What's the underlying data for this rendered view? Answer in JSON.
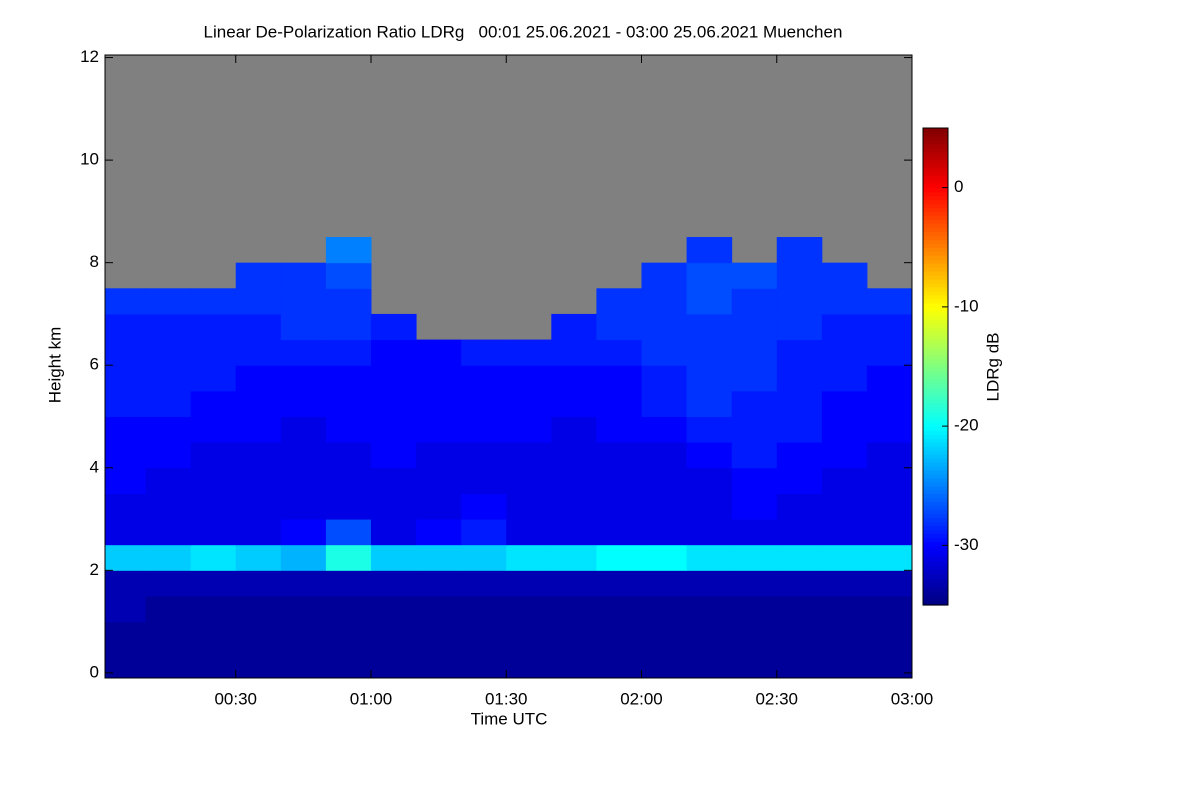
{
  "chart_data": {
    "type": "heatmap",
    "title": "Linear De-Polarization Ratio LDRg   00:01 25.06.2021 - 03:00 25.06.2021 Muenchen",
    "xlabel": "Time UTC",
    "ylabel": "Height km",
    "colorbar_label": "LDRg dB",
    "missing_color": "#808080",
    "colormap": "jet",
    "xlim": [
      1,
      180
    ],
    "ylim": [
      -0.1,
      12.05
    ],
    "zlim": [
      -35,
      5
    ],
    "xticks": [
      {
        "value": 30,
        "label": "00:30"
      },
      {
        "value": 60,
        "label": "01:00"
      },
      {
        "value": 90,
        "label": "01:30"
      },
      {
        "value": 120,
        "label": "02:00"
      },
      {
        "value": 150,
        "label": "02:30"
      },
      {
        "value": 180,
        "label": "03:00"
      }
    ],
    "yticks": [
      0,
      2,
      4,
      6,
      8,
      10,
      12
    ],
    "zticks": [
      -30,
      -20,
      -10,
      0
    ],
    "x_bins": [
      1,
      10,
      20,
      30,
      40,
      50,
      60,
      70,
      80,
      90,
      100,
      110,
      120,
      130,
      140,
      150,
      160,
      170,
      180
    ],
    "y_bins": [
      0,
      0.5,
      1,
      1.5,
      2,
      2.5,
      3,
      3.5,
      4,
      4.5,
      5,
      5.5,
      6,
      6.5,
      7,
      7.5,
      8,
      8.5,
      9,
      9.5,
      10,
      10.5,
      11,
      11.5,
      12
    ],
    "z": [
      [
        -34,
        -34,
        -34,
        -34,
        -34,
        -34,
        -34,
        -34,
        -34,
        -34,
        -34,
        -34,
        -34,
        -34,
        -34,
        -34,
        -34,
        -34
      ],
      [
        -34,
        -34,
        -34,
        -34,
        -34,
        -34,
        -34,
        -34,
        -34,
        -34,
        -34,
        -34,
        -34,
        -34,
        -34,
        -34,
        -34,
        -34
      ],
      [
        -33,
        -34,
        -34,
        -34,
        -34,
        -34,
        -34,
        -34,
        -34,
        -34,
        -34,
        -34,
        -34,
        -34,
        -34,
        -34,
        -34,
        -34
      ],
      [
        -33,
        -33,
        -33,
        -33,
        -33,
        -33,
        -33,
        -33,
        -33,
        -33,
        -33,
        -33,
        -33,
        -33,
        -33,
        -33,
        -33,
        -33
      ],
      [
        -22,
        -22,
        -21,
        -22,
        -23,
        -19,
        -22,
        -22,
        -22,
        -21,
        -21,
        -20,
        -20,
        -21,
        -21,
        -21,
        -21,
        -21
      ],
      [
        -31,
        -31,
        -31,
        -31,
        -30,
        -27,
        -31,
        -30,
        -29,
        -31,
        -31,
        -31,
        -31,
        -31,
        -31,
        -31,
        -31,
        -31
      ],
      [
        -31,
        -31,
        -31,
        -31,
        -31,
        -31,
        -31,
        -31,
        -30,
        -31,
        -31,
        -31,
        -31,
        -31,
        -30,
        -31,
        -31,
        -31
      ],
      [
        -30,
        -31,
        -31,
        -31,
        -31,
        -31,
        -31,
        -31,
        -31,
        -31,
        -31,
        -31,
        -31,
        -31,
        -30,
        -30,
        -31,
        -31
      ],
      [
        -30,
        -30,
        -31,
        -31,
        -31,
        -31,
        -30,
        -31,
        -31,
        -31,
        -31,
        -31,
        -31,
        -30,
        -29,
        -30,
        -30,
        -31
      ],
      [
        -30,
        -30,
        -30,
        -30,
        -31,
        -30,
        -30,
        -30,
        -30,
        -30,
        -31,
        -30,
        -30,
        -29,
        -29,
        -29,
        -30,
        -30
      ],
      [
        -29,
        -29,
        -30,
        -30,
        -30,
        -30,
        -30,
        -30,
        -30,
        -30,
        -30,
        -30,
        -29,
        -28,
        -29,
        -29,
        -30,
        -30
      ],
      [
        -29,
        -29,
        -29,
        -30,
        -30,
        -30,
        -30,
        -30,
        -30,
        -30,
        -30,
        -30,
        -29,
        -28,
        -28,
        -29,
        -29,
        -30
      ],
      [
        -29,
        -29,
        -29,
        -29,
        -29,
        -29,
        -30,
        -30,
        -29,
        -29,
        -29,
        -29,
        -28,
        -28,
        -28,
        -29,
        -29,
        -29
      ],
      [
        -29,
        -29,
        -29,
        -29,
        -28,
        -28,
        -29,
        null,
        null,
        null,
        -29,
        -28,
        -28,
        -28,
        -28,
        -28,
        -29,
        -29
      ],
      [
        -28,
        -28,
        -28,
        -28,
        -28,
        -28,
        null,
        null,
        null,
        null,
        null,
        -28,
        -28,
        -27,
        -28,
        -28,
        -28,
        -28
      ],
      [
        null,
        null,
        null,
        -28,
        -28,
        -27,
        null,
        null,
        null,
        null,
        null,
        null,
        -28,
        -27,
        -27,
        -28,
        -28,
        null
      ],
      [
        null,
        null,
        null,
        null,
        null,
        -25,
        null,
        null,
        null,
        null,
        null,
        null,
        null,
        -28,
        null,
        -28,
        null,
        null
      ],
      [
        null,
        null,
        null,
        null,
        null,
        null,
        null,
        null,
        null,
        null,
        null,
        null,
        null,
        null,
        null,
        null,
        null,
        null
      ],
      [
        null,
        null,
        null,
        null,
        null,
        null,
        null,
        null,
        null,
        null,
        null,
        null,
        null,
        null,
        null,
        null,
        null,
        null
      ],
      [
        null,
        null,
        null,
        null,
        null,
        null,
        null,
        null,
        null,
        null,
        null,
        null,
        null,
        null,
        null,
        null,
        null,
        null
      ],
      [
        null,
        null,
        null,
        null,
        null,
        null,
        null,
        null,
        null,
        null,
        null,
        null,
        null,
        null,
        null,
        null,
        null,
        null
      ],
      [
        null,
        null,
        null,
        null,
        null,
        null,
        null,
        null,
        null,
        null,
        null,
        null,
        null,
        null,
        null,
        null,
        null,
        null
      ],
      [
        null,
        null,
        null,
        null,
        null,
        null,
        null,
        null,
        null,
        null,
        null,
        null,
        null,
        null,
        null,
        null,
        null,
        null
      ],
      [
        null,
        null,
        null,
        null,
        null,
        null,
        null,
        null,
        null,
        null,
        null,
        null,
        null,
        null,
        null,
        null,
        null,
        null
      ]
    ]
  }
}
